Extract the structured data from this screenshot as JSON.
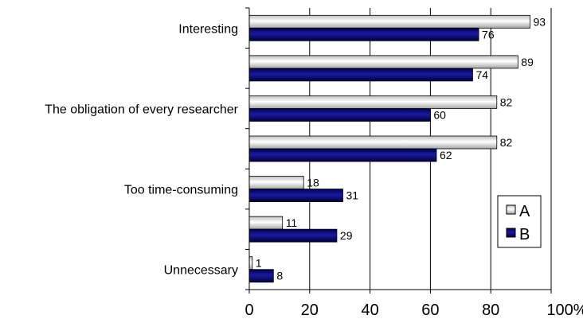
{
  "chart_data": {
    "type": "bar",
    "orientation": "horizontal",
    "categories": [
      "Interesting",
      "",
      "The obligation of every researcher",
      "",
      "Too time-consuming",
      "",
      "Unnecessary"
    ],
    "series": [
      {
        "name": "A",
        "values": [
          93,
          89,
          82,
          82,
          18,
          11,
          1
        ],
        "color": "#d9d9d9"
      },
      {
        "name": "B",
        "values": [
          76,
          74,
          60,
          62,
          31,
          29,
          8
        ],
        "color": "#000080"
      }
    ],
    "xlim": [
      0,
      100
    ],
    "xticks": [
      "0",
      "20",
      "40",
      "60",
      "80",
      "100%"
    ],
    "grid": true,
    "legend_position": "right"
  }
}
